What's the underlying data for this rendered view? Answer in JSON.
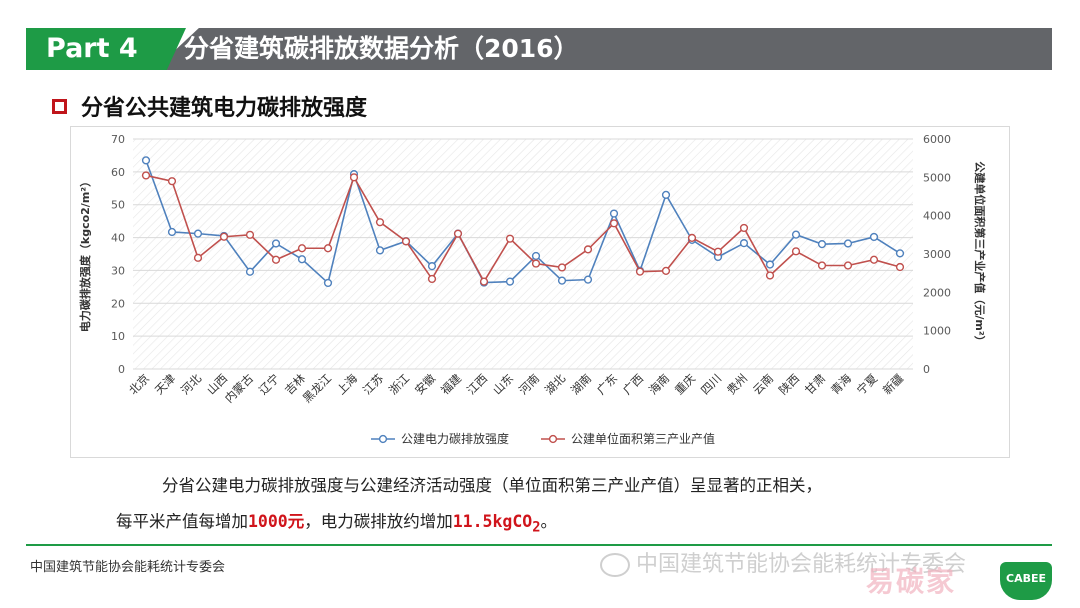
{
  "header": {
    "part": "Part 4",
    "title": "分省建筑碳排放数据分析（2016）"
  },
  "subheading": "分省公共建筑电力碳排放强度",
  "chart_data": {
    "type": "line",
    "categories": [
      "北京",
      "天津",
      "河北",
      "山西",
      "内蒙古",
      "辽宁",
      "吉林",
      "黑龙江",
      "上海",
      "江苏",
      "浙江",
      "安徽",
      "福建",
      "江西",
      "山东",
      "河南",
      "湖北",
      "湖南",
      "广东",
      "广西",
      "海南",
      "重庆",
      "四川",
      "贵州",
      "云南",
      "陕西",
      "甘肃",
      "青海",
      "宁夏",
      "新疆"
    ],
    "series": [
      {
        "name": "公建电力碳排放强度",
        "axis": "left",
        "color": "#4f81bd",
        "values": [
          63.5,
          41.7,
          41.2,
          40.5,
          29.6,
          38.2,
          33.4,
          26.2,
          59.3,
          36.1,
          38.9,
          31.3,
          41.2,
          26.3,
          26.6,
          34.4,
          26.9,
          27.2,
          47.3,
          29.9,
          53.0,
          39.3,
          34.1,
          38.3,
          31.8,
          40.9,
          38.0,
          38.2,
          40.2,
          35.2
        ]
      },
      {
        "name": "公建单位面积第三产业产值",
        "axis": "right",
        "color": "#c0504d",
        "values": [
          5050,
          4900,
          2900,
          3450,
          3500,
          2850,
          3150,
          3150,
          5000,
          3830,
          3330,
          2350,
          3530,
          2280,
          3400,
          2750,
          2650,
          3120,
          3800,
          2540,
          2560,
          3420,
          3060,
          3680,
          2440,
          3070,
          2700,
          2700,
          2850,
          2660
        ]
      }
    ],
    "y_left": {
      "label": "电力碳排放强度（kgco2/m²）",
      "min": 0,
      "max": 70,
      "ticks": [
        0,
        10,
        20,
        30,
        40,
        50,
        60,
        70
      ]
    },
    "y_right": {
      "label": "公建单位面积第三产业产值（元/m²）",
      "min": 0,
      "max": 6000,
      "ticks": [
        0,
        1000,
        2000,
        3000,
        4000,
        5000,
        6000
      ]
    },
    "grid": "horizontal",
    "legend": "bottom"
  },
  "body": {
    "line1": "分省公建电力碳排放强度与公建经济活动强度（单位面积第三产业产值）呈显著的正相关，",
    "line2_a": "每平米产值每增加",
    "line2_hl1": "1000元",
    "line2_b": "，电力碳排放约增加",
    "line2_hl2": "11.5kgCO",
    "line2_sub": "2",
    "line2_c": "。"
  },
  "footer": {
    "org": "中国建筑节能协会能耗统计专委会",
    "watermark": "中国建筑节能协会能耗统计专委会",
    "logo": "CABEE",
    "site": "易碳家"
  },
  "colors": {
    "accent_green": "#1e9b46",
    "title_gray": "#636569",
    "highlight_red": "#d0141b"
  }
}
